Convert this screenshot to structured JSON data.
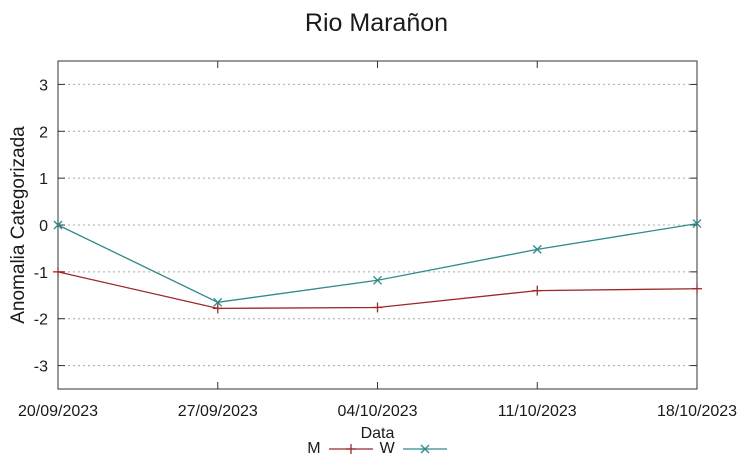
{
  "chart_data": {
    "type": "line",
    "title": "Rio Marañon",
    "xlabel": "Data",
    "ylabel": "Anomalia Categorizada",
    "categories": [
      "20/09/2023",
      "27/09/2023",
      "04/10/2023",
      "11/10/2023",
      "18/10/2023"
    ],
    "series": [
      {
        "name": "M",
        "marker": "plus",
        "color": "#9e2828",
        "values": [
          -1.0,
          -1.78,
          -1.76,
          -1.4,
          -1.36
        ]
      },
      {
        "name": "W",
        "marker": "cross",
        "color": "#2e8b8b",
        "values": [
          0.0,
          -1.65,
          -1.18,
          -0.52,
          0.03
        ]
      }
    ],
    "ylim": [
      -3.5,
      3.5
    ],
    "yticks": [
      3,
      2,
      1,
      0,
      -1,
      -2,
      -3
    ],
    "grid": "horizontal-dashed",
    "legend_position": "bottom-center"
  },
  "colors": {
    "background": "#ffffff",
    "axis": "#333333",
    "grid": "#a8a8a8",
    "text": "#1a1a1a",
    "series_m": "#9e2828",
    "series_w": "#2e8b8b"
  }
}
